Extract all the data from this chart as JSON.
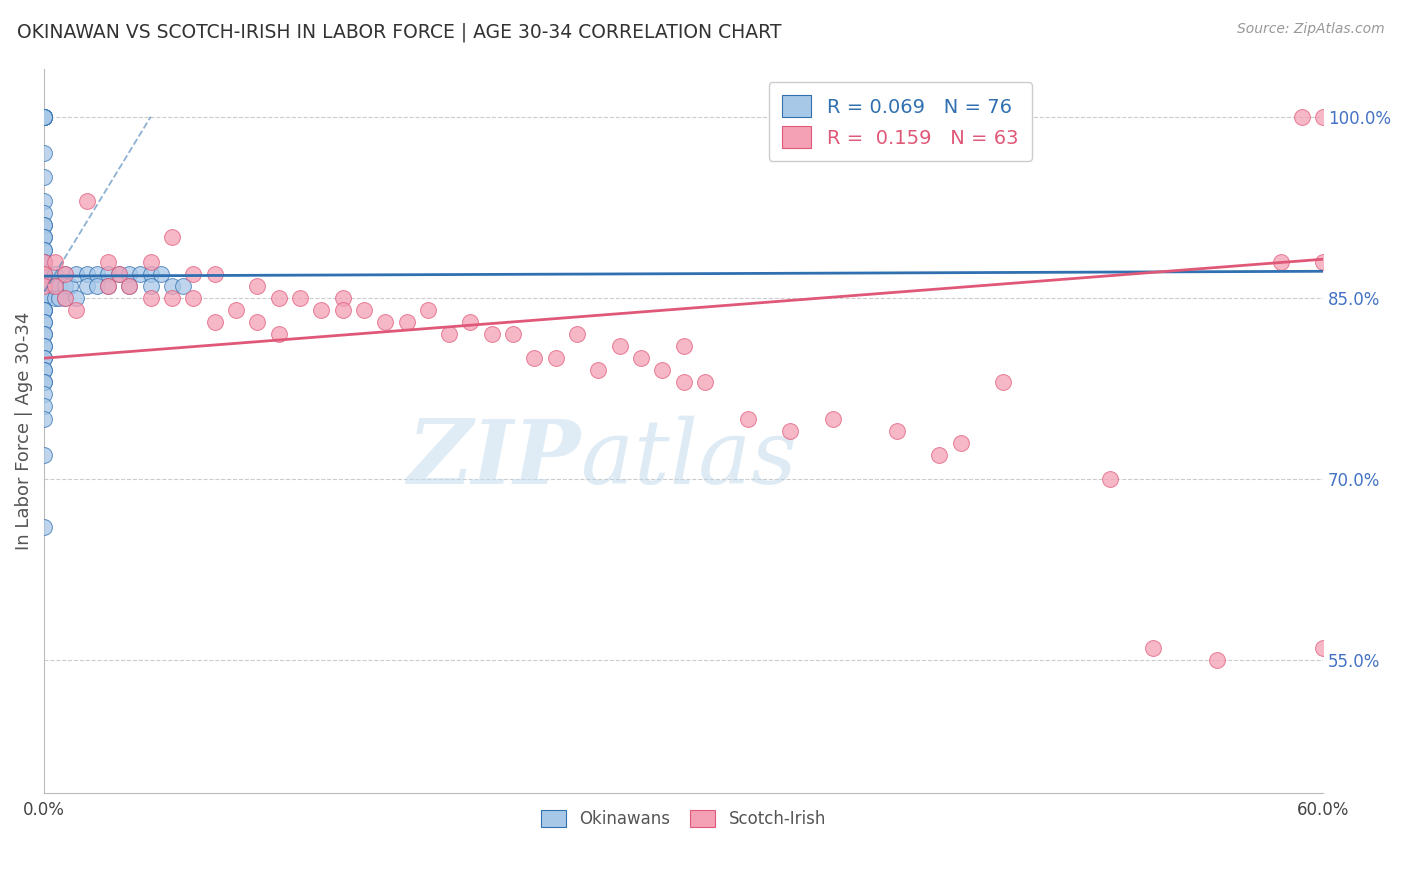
{
  "title": "OKINAWAN VS SCOTCH-IRISH IN LABOR FORCE | AGE 30-34 CORRELATION CHART",
  "source": "Source: ZipAtlas.com",
  "ylabel": "In Labor Force | Age 30-34",
  "xlim": [
    0.0,
    0.6
  ],
  "ylim": [
    0.44,
    1.04
  ],
  "xticks": [
    0.0,
    0.1,
    0.2,
    0.3,
    0.4,
    0.5,
    0.6
  ],
  "xticklabels": [
    "0.0%",
    "",
    "",
    "",
    "",
    "",
    "60.0%"
  ],
  "yticks_right": [
    0.55,
    0.7,
    0.85,
    1.0
  ],
  "yticklabels_right": [
    "55.0%",
    "70.0%",
    "85.0%",
    "100.0%"
  ],
  "blue_R": 0.069,
  "blue_N": 76,
  "pink_R": 0.159,
  "pink_N": 63,
  "blue_color": "#a8c8e8",
  "pink_color": "#f4a0b5",
  "blue_line_color": "#3070b0",
  "pink_line_color": "#e05878",
  "blue_trend": [
    0.0,
    0.6,
    0.868,
    0.872
  ],
  "pink_trend": [
    0.0,
    0.6,
    0.8,
    0.882
  ],
  "blue_dash": [
    0.0,
    0.05,
    0.855,
    1.0
  ],
  "blue_dots_x": [
    0.0,
    0.0,
    0.0,
    0.0,
    0.0,
    0.0,
    0.0,
    0.0,
    0.0,
    0.0,
    0.0,
    0.0,
    0.0,
    0.0,
    0.0,
    0.0,
    0.0,
    0.0,
    0.0,
    0.0,
    0.0,
    0.0,
    0.0,
    0.0,
    0.0,
    0.0,
    0.0,
    0.0,
    0.0,
    0.0,
    0.0,
    0.0,
    0.0,
    0.0,
    0.0,
    0.0,
    0.0,
    0.0,
    0.0,
    0.0,
    0.0,
    0.0,
    0.0,
    0.0,
    0.0,
    0.0,
    0.0,
    0.0,
    0.0,
    0.0,
    0.005,
    0.005,
    0.005,
    0.007,
    0.007,
    0.01,
    0.01,
    0.01,
    0.012,
    0.015,
    0.015,
    0.02,
    0.02,
    0.025,
    0.025,
    0.03,
    0.03,
    0.035,
    0.04,
    0.04,
    0.045,
    0.05,
    0.05,
    0.055,
    0.06,
    0.065
  ],
  "blue_dots_y": [
    1.0,
    1.0,
    1.0,
    1.0,
    1.0,
    1.0,
    1.0,
    1.0,
    0.97,
    0.95,
    0.93,
    0.92,
    0.91,
    0.91,
    0.9,
    0.9,
    0.89,
    0.89,
    0.88,
    0.88,
    0.87,
    0.87,
    0.87,
    0.86,
    0.86,
    0.86,
    0.85,
    0.85,
    0.85,
    0.84,
    0.84,
    0.84,
    0.84,
    0.83,
    0.83,
    0.82,
    0.82,
    0.81,
    0.81,
    0.8,
    0.8,
    0.79,
    0.79,
    0.78,
    0.78,
    0.77,
    0.76,
    0.75,
    0.72,
    0.66,
    0.87,
    0.86,
    0.85,
    0.86,
    0.85,
    0.87,
    0.86,
    0.85,
    0.86,
    0.87,
    0.85,
    0.87,
    0.86,
    0.87,
    0.86,
    0.87,
    0.86,
    0.87,
    0.87,
    0.86,
    0.87,
    0.87,
    0.86,
    0.87,
    0.86,
    0.86
  ],
  "pink_dots_x": [
    0.0,
    0.0,
    0.0,
    0.005,
    0.005,
    0.01,
    0.01,
    0.015,
    0.02,
    0.03,
    0.03,
    0.035,
    0.04,
    0.05,
    0.05,
    0.06,
    0.06,
    0.07,
    0.07,
    0.08,
    0.08,
    0.09,
    0.1,
    0.1,
    0.11,
    0.11,
    0.12,
    0.13,
    0.14,
    0.14,
    0.15,
    0.16,
    0.17,
    0.18,
    0.19,
    0.2,
    0.21,
    0.22,
    0.23,
    0.24,
    0.25,
    0.26,
    0.27,
    0.28,
    0.29,
    0.3,
    0.3,
    0.31,
    0.33,
    0.35,
    0.37,
    0.4,
    0.42,
    0.43,
    0.45,
    0.5,
    0.52,
    0.55,
    0.58,
    0.59,
    0.6,
    0.6,
    0.6
  ],
  "pink_dots_y": [
    0.88,
    0.87,
    0.86,
    0.88,
    0.86,
    0.87,
    0.85,
    0.84,
    0.93,
    0.88,
    0.86,
    0.87,
    0.86,
    0.88,
    0.85,
    0.9,
    0.85,
    0.87,
    0.85,
    0.87,
    0.83,
    0.84,
    0.86,
    0.83,
    0.85,
    0.82,
    0.85,
    0.84,
    0.85,
    0.84,
    0.84,
    0.83,
    0.83,
    0.84,
    0.82,
    0.83,
    0.82,
    0.82,
    0.8,
    0.8,
    0.82,
    0.79,
    0.81,
    0.8,
    0.79,
    0.81,
    0.78,
    0.78,
    0.75,
    0.74,
    0.75,
    0.74,
    0.72,
    0.73,
    0.78,
    0.7,
    0.56,
    0.55,
    0.88,
    1.0,
    1.0,
    0.88,
    0.56
  ],
  "watermark_zip": "ZIP",
  "watermark_atlas": "atlas",
  "background_color": "#ffffff",
  "grid_color": "#cccccc"
}
